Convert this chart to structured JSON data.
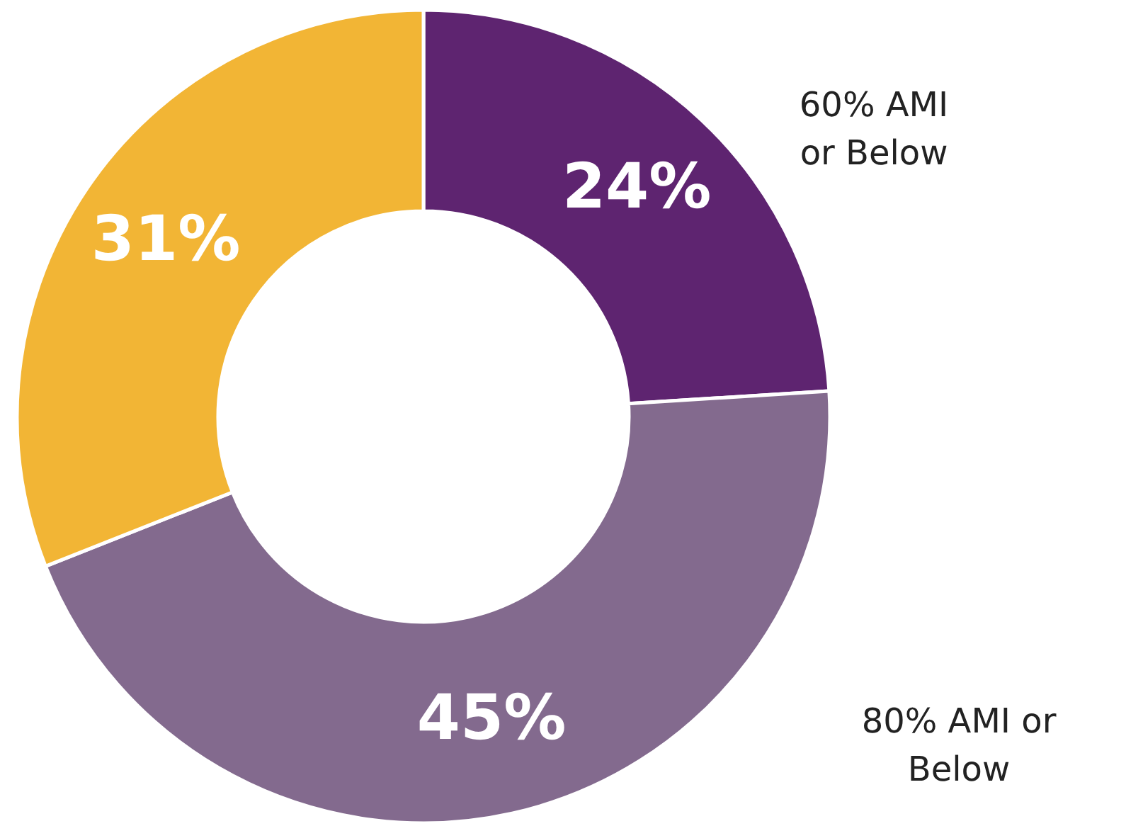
{
  "chart_data": {
    "type": "donut",
    "categories": [
      "60% AMI\nor Below",
      "80% AMI or\nBelow",
      null
    ],
    "values": [
      24,
      45,
      31
    ],
    "colors": [
      "#5e2470",
      "#836a8e",
      "#f2b535"
    ],
    "value_labels": [
      "24%",
      "45%",
      "31%"
    ]
  }
}
